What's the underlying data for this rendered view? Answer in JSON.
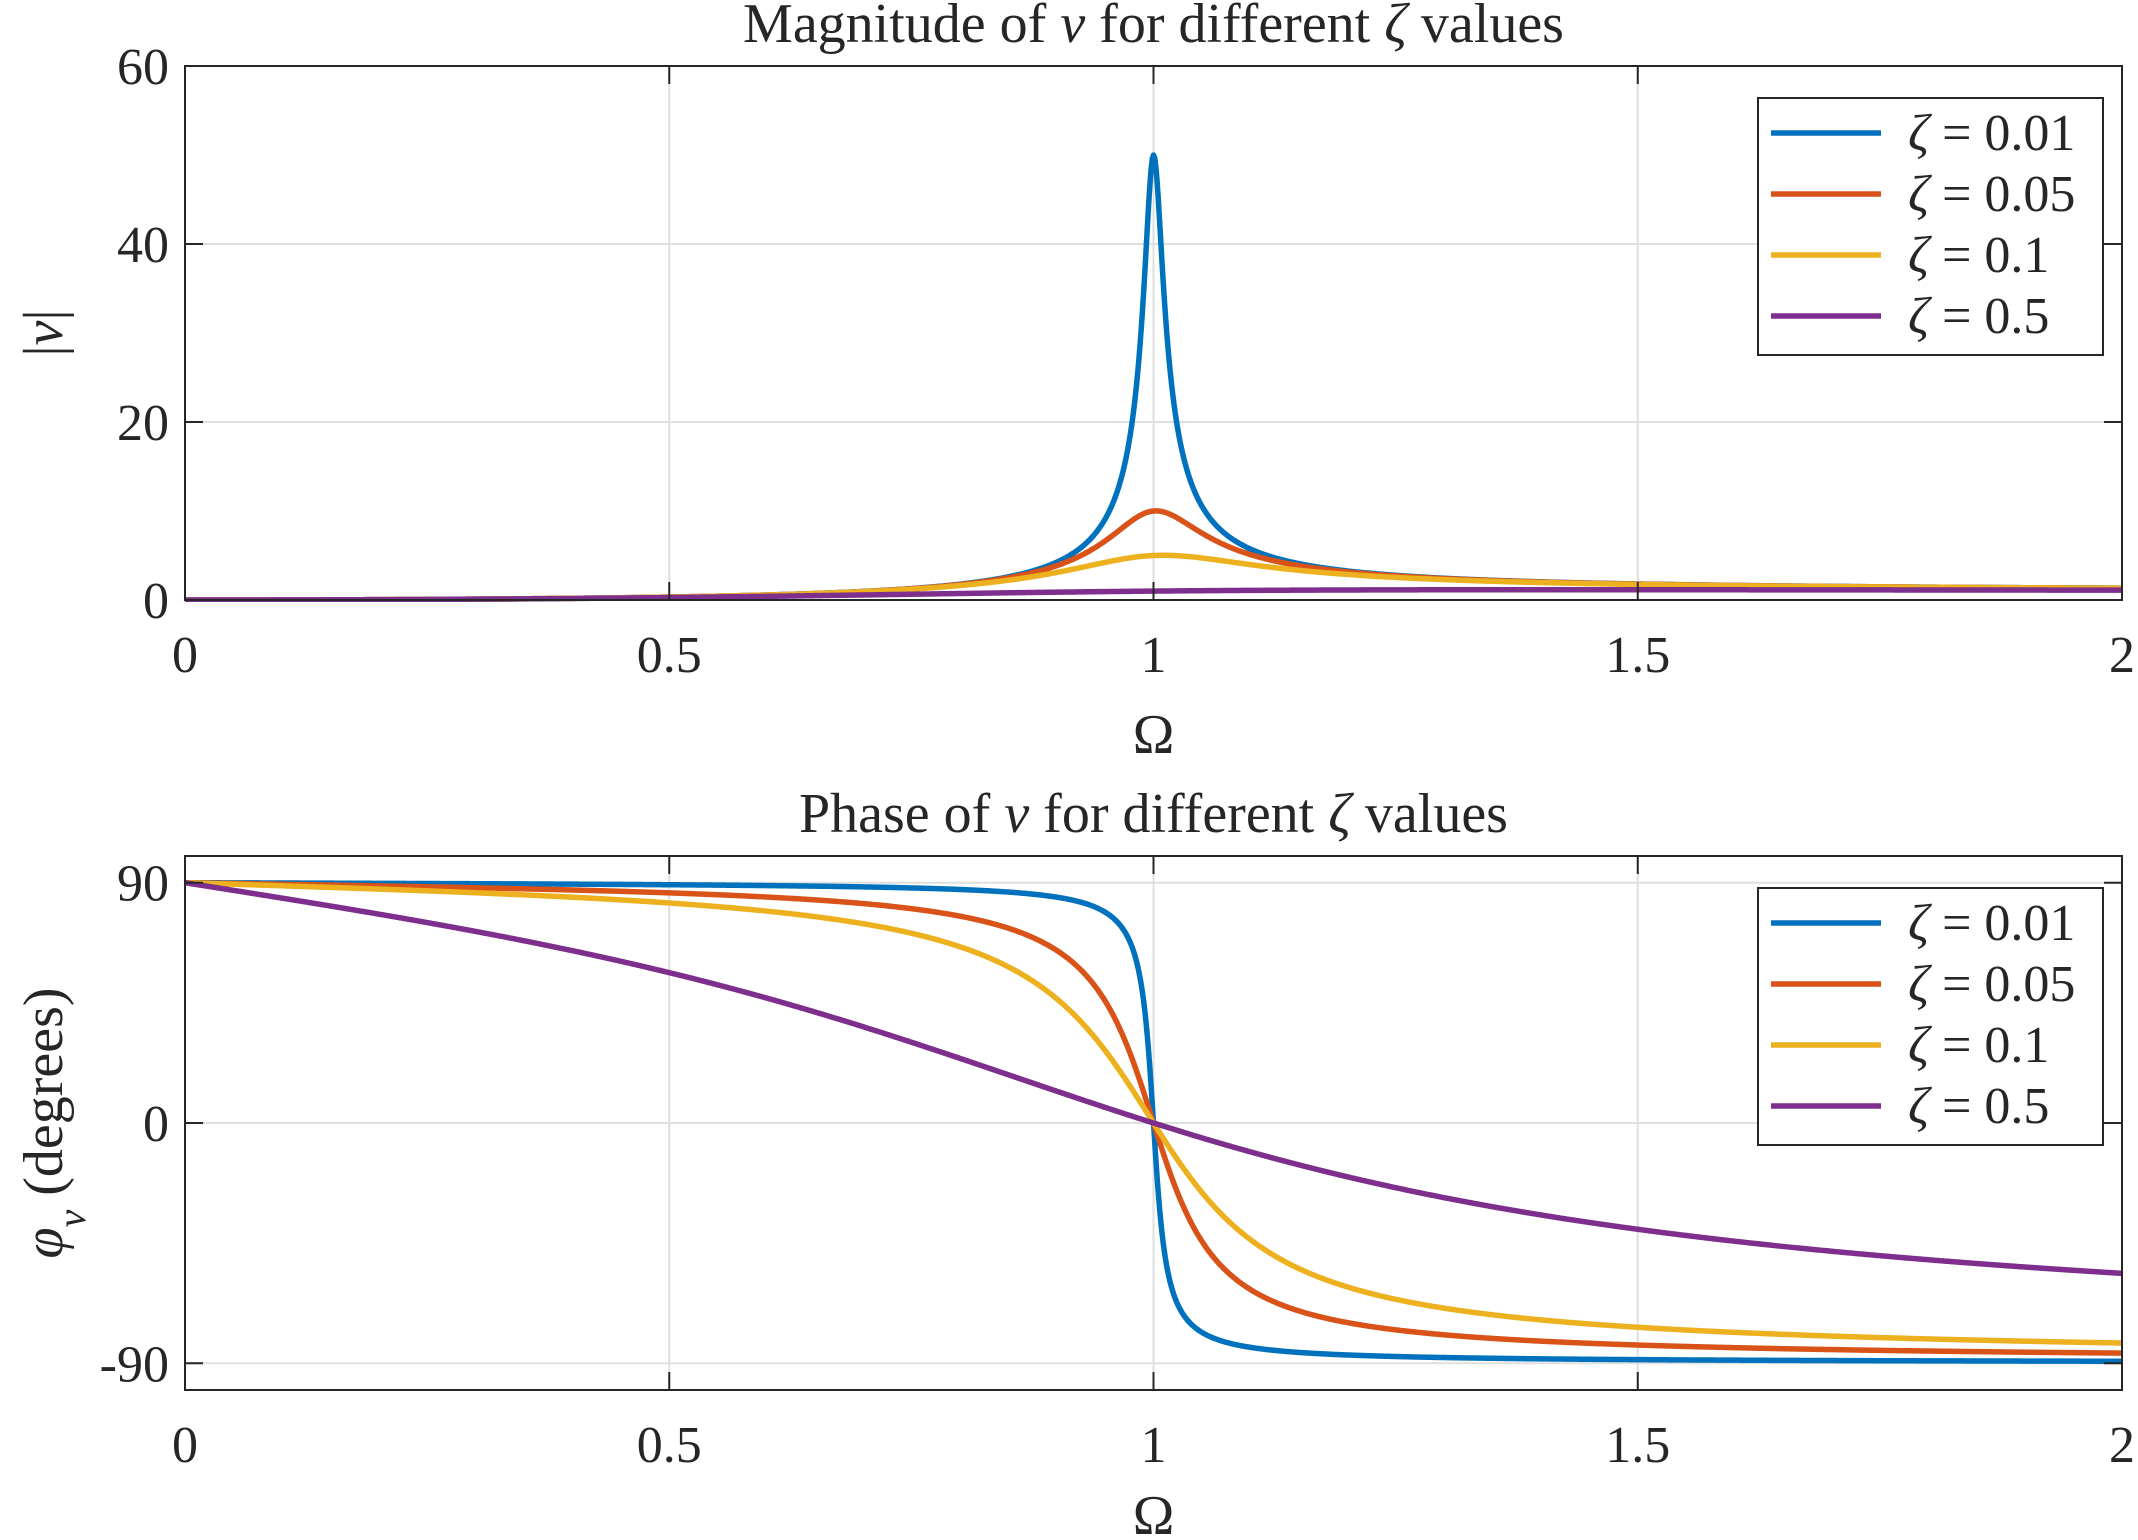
{
  "chart_data": [
    {
      "type": "line",
      "title": {
        "pre": "Magnitude of ",
        "var": "v",
        "mid": " for different ",
        "sym": "ζ",
        "post": " values"
      },
      "xlabel": "Ω",
      "ylabel": "|v|",
      "xlim": [
        0,
        2
      ],
      "ylim": [
        0,
        60
      ],
      "xticks": [
        0,
        0.5,
        1,
        1.5,
        2
      ],
      "xtick_labels": [
        "0",
        "0.5",
        "1",
        "1.5",
        "2"
      ],
      "yticks": [
        0,
        20,
        40,
        60
      ],
      "ytick_labels": [
        "0",
        "20",
        "40",
        "60"
      ],
      "grid": true,
      "legend_position": "top-right",
      "series": [
        {
          "name": "ζ = 0.01",
          "zeta": 0.01,
          "color": "#0072BD",
          "x": [
            0,
            0.25,
            0.5,
            0.7,
            0.8,
            0.9,
            0.95,
            0.98,
            1.0,
            1.02,
            1.05,
            1.1,
            1.2,
            1.5,
            2.0
          ],
          "values": [
            0,
            0.067,
            0.333,
            0.961,
            1.778,
            4.26,
            9.24,
            22.1,
            50.0,
            22.7,
            10.2,
            5.21,
            2.73,
            1.2,
            0.667
          ]
        },
        {
          "name": "ζ = 0.05",
          "zeta": 0.05,
          "color": "#D95319",
          "x": [
            0,
            0.25,
            0.5,
            0.7,
            0.8,
            0.9,
            0.95,
            1.0,
            1.05,
            1.1,
            1.2,
            1.5,
            2.0
          ],
          "values": [
            0,
            0.067,
            0.333,
            0.958,
            1.76,
            3.99,
            6.93,
            10.0,
            7.1,
            4.35,
            2.61,
            1.19,
            0.666
          ]
        },
        {
          "name": "ζ = 0.1",
          "zeta": 0.1,
          "color": "#EDB120",
          "x": [
            0,
            0.25,
            0.5,
            0.7,
            0.8,
            0.9,
            0.95,
            1.0,
            1.05,
            1.1,
            1.2,
            1.5,
            2.0
          ],
          "values": [
            0,
            0.067,
            0.332,
            0.948,
            1.71,
            3.43,
            4.4,
            5.0,
            4.52,
            3.58,
            2.36,
            1.17,
            0.664
          ]
        },
        {
          "name": "ζ = 0.5",
          "zeta": 0.5,
          "color": "#7E2F8E",
          "x": [
            0,
            0.25,
            0.5,
            0.7,
            0.8,
            0.9,
            1.0,
            1.1,
            1.2,
            1.5,
            2.0
          ],
          "values": [
            0,
            0.064,
            0.277,
            0.57,
            0.715,
            0.866,
            1.0,
            1.09,
            1.16,
            1.11,
            0.72
          ]
        }
      ]
    },
    {
      "type": "line",
      "title": {
        "pre": "Phase of ",
        "var": "v",
        "mid": " for different ",
        "sym": "ζ",
        "post": " values"
      },
      "xlabel": "Ω",
      "ylabel": {
        "sym": "φ",
        "sub": "v",
        "rest": " (degrees)"
      },
      "xlim": [
        0,
        2
      ],
      "ylim": [
        -100,
        100
      ],
      "xticks": [
        0,
        0.5,
        1,
        1.5,
        2
      ],
      "xtick_labels": [
        "0",
        "0.5",
        "1",
        "1.5",
        "2"
      ],
      "yticks": [
        -90,
        0,
        90
      ],
      "ytick_labels": [
        "-90",
        "0",
        "90"
      ],
      "grid": true,
      "legend_position": "top-right",
      "series": [
        {
          "name": "ζ = 0.01",
          "zeta": 0.01,
          "color": "#0072BD",
          "x": [
            0,
            0.5,
            0.8,
            0.9,
            0.95,
            1.0,
            1.05,
            1.1,
            1.2,
            1.5,
            2.0
          ],
          "values": [
            90,
            89.2,
            87.5,
            84.6,
            78.9,
            0,
            -78.8,
            -84.0,
            -87.2,
            -89.2,
            -89.6
          ]
        },
        {
          "name": "ζ = 0.05",
          "zeta": 0.05,
          "color": "#D95319",
          "x": [
            0,
            0.5,
            0.8,
            0.9,
            0.95,
            1.0,
            1.05,
            1.1,
            1.2,
            1.5,
            2.0
          ],
          "values": [
            90,
            86.2,
            78.2,
            64.7,
            45.7,
            0,
            -45.6,
            -62.3,
            -74.7,
            -85.4,
            -88.1
          ]
        },
        {
          "name": "ζ = 0.1",
          "zeta": 0.1,
          "color": "#EDB120",
          "x": [
            0,
            0.5,
            0.8,
            0.9,
            0.95,
            1.0,
            1.05,
            1.1,
            1.2,
            1.5,
            2.0
          ],
          "values": [
            90,
            82.4,
            66.0,
            46.3,
            27.1,
            0,
            -27.0,
            -43.7,
            -61.2,
            -80.5,
            -86.2
          ]
        },
        {
          "name": "ζ = 0.5",
          "zeta": 0.5,
          "color": "#7E2F8E",
          "x": [
            0,
            0.25,
            0.5,
            0.8,
            0.9,
            1.0,
            1.1,
            1.2,
            1.5,
            2.0
          ],
          "values": [
            90,
            75.1,
            56.3,
            29.6,
            15.0,
            0,
            -13.0,
            -24.8,
            -50.2,
            -56.3
          ]
        }
      ]
    }
  ]
}
